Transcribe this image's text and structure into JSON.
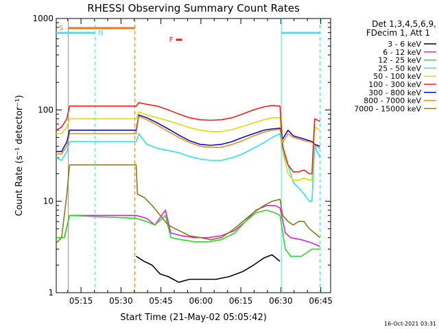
{
  "chart_data": {
    "type": "line",
    "title": "RHESSI Observing Summary Count Rates",
    "xlabel": "Start Time (21-May-02 05:05:42)",
    "ylabel": "Count Rate (s⁻¹ detector⁻¹)",
    "yscale": "log",
    "ylim": [
      1,
      1000
    ],
    "xlim_minutes": [
      0,
      103
    ],
    "x_tick_labels": [
      "05:15",
      "05:30",
      "05:45",
      "06:00",
      "06:15",
      "06:30",
      "06:45"
    ],
    "x_ticks_minutes": [
      9.3,
      24.3,
      39.3,
      54.3,
      69.3,
      84.3,
      99.3
    ],
    "y_tick_labels": [
      "1",
      "10",
      "100",
      "1000"
    ],
    "y_ticks": [
      1,
      10,
      100,
      1000
    ],
    "legend_title": [
      "Det 1,3,4,5,6,9,",
      "FDecim 1, Att 1"
    ],
    "legend_position": "top-right",
    "footer_date": "16-Oct-2021 03:31",
    "annotations": {
      "S": {
        "label": "S",
        "color": "#e87a1d",
        "from_minutes": 4.5,
        "to_minutes": 29.5
      },
      "N": {
        "label": "N",
        "color": "#4fdde8",
        "segments": [
          [
            0,
            14.5
          ],
          [
            84.5,
            99.0
          ]
        ]
      },
      "F": {
        "label": "F",
        "color": "#e81818",
        "x_minutes": 46.5
      }
    },
    "vlines": [
      {
        "x_minutes": 4.5,
        "color": "#e87a1d",
        "style": "solid"
      },
      {
        "x_minutes": 14.5,
        "color": "#4fdde8",
        "style": "dashed"
      },
      {
        "x_minutes": 29.5,
        "color": "#e87a1d",
        "style": "dashed"
      },
      {
        "x_minutes": 84.5,
        "color": "#4fdde8",
        "style": "solid"
      },
      {
        "x_minutes": 99.0,
        "color": "#4fdde8",
        "style": "dashed"
      }
    ],
    "series": [
      {
        "name": "3 - 6 keV",
        "color": "#000000",
        "points": [
          [
            30.0,
            2.5
          ],
          [
            33,
            2.2
          ],
          [
            36,
            2.0
          ],
          [
            39,
            1.6
          ],
          [
            42,
            1.5
          ],
          [
            46,
            1.3
          ],
          [
            50,
            1.4
          ],
          [
            55,
            1.4
          ],
          [
            60,
            1.4
          ],
          [
            65,
            1.5
          ],
          [
            70,
            1.7
          ],
          [
            74,
            2.0
          ],
          [
            78,
            2.4
          ],
          [
            81,
            2.6
          ],
          [
            84,
            2.2
          ]
        ]
      },
      {
        "name": "6 - 12 keV",
        "color": "#e01ee0",
        "points": [
          [
            0,
            4
          ],
          [
            3,
            4
          ],
          [
            5,
            7
          ],
          [
            30,
            7
          ],
          [
            34,
            6.5
          ],
          [
            37,
            5.5
          ],
          [
            41,
            8
          ],
          [
            43,
            4.5
          ],
          [
            47,
            4.2
          ],
          [
            52,
            4.0
          ],
          [
            57,
            4.0
          ],
          [
            62,
            4.2
          ],
          [
            67,
            4.8
          ],
          [
            71,
            6
          ],
          [
            75,
            8
          ],
          [
            79,
            9
          ],
          [
            82,
            9
          ],
          [
            84,
            8.5
          ],
          [
            86,
            4.5
          ],
          [
            88,
            4.0
          ],
          [
            92,
            3.8
          ],
          [
            96,
            3.5
          ],
          [
            99,
            3.2
          ]
        ]
      },
      {
        "name": "12 - 25 keV",
        "color": "#1fe01f",
        "points": [
          [
            0,
            4
          ],
          [
            3,
            4
          ],
          [
            5,
            7
          ],
          [
            30,
            6.5
          ],
          [
            34,
            6
          ],
          [
            37,
            5.5
          ],
          [
            41,
            7
          ],
          [
            43,
            4
          ],
          [
            47,
            3.8
          ],
          [
            52,
            3.6
          ],
          [
            57,
            3.6
          ],
          [
            62,
            3.8
          ],
          [
            67,
            4.5
          ],
          [
            71,
            6
          ],
          [
            75,
            7.5
          ],
          [
            79,
            8
          ],
          [
            82,
            7.5
          ],
          [
            84,
            7
          ],
          [
            86,
            3
          ],
          [
            88,
            2.5
          ],
          [
            92,
            2.5
          ],
          [
            96,
            3
          ],
          [
            99,
            3
          ]
        ]
      },
      {
        "name": "25 - 50 keV",
        "color": "#22e5ee",
        "points": [
          [
            0,
            30
          ],
          [
            2,
            28
          ],
          [
            4,
            35
          ],
          [
            5,
            45
          ],
          [
            30,
            45
          ],
          [
            31,
            55
          ],
          [
            34,
            42
          ],
          [
            38,
            38
          ],
          [
            42,
            36
          ],
          [
            46,
            34
          ],
          [
            50,
            31
          ],
          [
            54,
            29
          ],
          [
            58,
            28
          ],
          [
            62,
            28
          ],
          [
            66,
            30
          ],
          [
            70,
            33
          ],
          [
            74,
            38
          ],
          [
            78,
            44
          ],
          [
            81,
            50
          ],
          [
            84,
            55
          ],
          [
            85,
            35
          ],
          [
            87,
            25
          ],
          [
            89,
            16
          ],
          [
            91,
            14
          ],
          [
            93,
            12
          ],
          [
            95,
            10
          ],
          [
            96,
            10
          ],
          [
            97,
            40
          ],
          [
            99,
            30
          ]
        ]
      },
      {
        "name": "50 - 100 keV",
        "color": "#dcdc00",
        "points": [
          [
            0,
            55
          ],
          [
            2,
            55
          ],
          [
            4,
            65
          ],
          [
            5,
            80
          ],
          [
            30,
            80
          ],
          [
            31,
            95
          ],
          [
            34,
            88
          ],
          [
            38,
            82
          ],
          [
            42,
            76
          ],
          [
            46,
            70
          ],
          [
            50,
            64
          ],
          [
            54,
            60
          ],
          [
            58,
            58
          ],
          [
            62,
            58
          ],
          [
            66,
            61
          ],
          [
            70,
            66
          ],
          [
            74,
            72
          ],
          [
            78,
            78
          ],
          [
            81,
            82
          ],
          [
            84,
            82
          ],
          [
            85,
            35
          ],
          [
            87,
            20
          ],
          [
            89,
            17
          ],
          [
            91,
            17
          ],
          [
            93,
            18
          ],
          [
            95,
            17
          ],
          [
            96,
            17
          ],
          [
            97,
            65
          ],
          [
            99,
            60
          ]
        ]
      },
      {
        "name": "100 - 300 keV",
        "color": "#ff1a1a",
        "points": [
          [
            0,
            60
          ],
          [
            2,
            65
          ],
          [
            4,
            80
          ],
          [
            5,
            110
          ],
          [
            30,
            110
          ],
          [
            31,
            120
          ],
          [
            34,
            115
          ],
          [
            38,
            110
          ],
          [
            42,
            100
          ],
          [
            46,
            90
          ],
          [
            50,
            82
          ],
          [
            54,
            78
          ],
          [
            58,
            77
          ],
          [
            62,
            78
          ],
          [
            66,
            82
          ],
          [
            70,
            90
          ],
          [
            74,
            100
          ],
          [
            78,
            108
          ],
          [
            81,
            112
          ],
          [
            84,
            110
          ],
          [
            85,
            40
          ],
          [
            87,
            25
          ],
          [
            89,
            21
          ],
          [
            91,
            21
          ],
          [
            93,
            22
          ],
          [
            95,
            20
          ],
          [
            96,
            20
          ],
          [
            97,
            80
          ],
          [
            99,
            75
          ]
        ]
      },
      {
        "name": "300 - 800 keV",
        "color": "#0a0ad0",
        "points": [
          [
            0,
            35
          ],
          [
            2,
            35
          ],
          [
            4,
            45
          ],
          [
            5,
            60
          ],
          [
            30,
            60
          ],
          [
            31,
            88
          ],
          [
            34,
            82
          ],
          [
            38,
            72
          ],
          [
            42,
            62
          ],
          [
            46,
            53
          ],
          [
            50,
            46
          ],
          [
            54,
            42
          ],
          [
            58,
            41
          ],
          [
            62,
            42
          ],
          [
            66,
            45
          ],
          [
            70,
            50
          ],
          [
            74,
            55
          ],
          [
            78,
            60
          ],
          [
            81,
            62
          ],
          [
            84,
            63
          ],
          [
            85,
            48
          ],
          [
            87,
            60
          ],
          [
            89,
            52
          ],
          [
            91,
            50
          ],
          [
            93,
            48
          ],
          [
            95,
            46
          ],
          [
            96,
            45
          ],
          [
            97,
            42
          ],
          [
            99,
            40
          ]
        ]
      },
      {
        "name": "800 - 7000 keV",
        "color": "#f0891a",
        "points": [
          [
            0,
            33
          ],
          [
            2,
            33
          ],
          [
            4,
            40
          ],
          [
            5,
            55
          ],
          [
            30,
            55
          ],
          [
            31,
            85
          ],
          [
            34,
            78
          ],
          [
            38,
            68
          ],
          [
            42,
            58
          ],
          [
            46,
            50
          ],
          [
            50,
            44
          ],
          [
            54,
            40
          ],
          [
            58,
            39
          ],
          [
            62,
            39
          ],
          [
            66,
            42
          ],
          [
            70,
            46
          ],
          [
            74,
            52
          ],
          [
            78,
            57
          ],
          [
            81,
            60
          ],
          [
            84,
            61
          ],
          [
            85,
            44
          ],
          [
            87,
            55
          ],
          [
            89,
            50
          ],
          [
            91,
            48
          ],
          [
            93,
            46
          ],
          [
            95,
            45
          ],
          [
            96,
            44
          ],
          [
            97,
            41
          ],
          [
            99,
            38
          ]
        ]
      },
      {
        "name": "7000 - 15000 keV",
        "color": "#8a7a10",
        "points": [
          [
            0,
            3.5
          ],
          [
            2,
            4
          ],
          [
            4,
            12
          ],
          [
            5,
            25
          ],
          [
            30,
            25
          ],
          [
            30.5,
            12
          ],
          [
            33,
            11
          ],
          [
            36,
            9
          ],
          [
            39,
            7
          ],
          [
            42,
            5.5
          ],
          [
            46,
            4.8
          ],
          [
            50,
            4.2
          ],
          [
            54,
            4.0
          ],
          [
            58,
            3.8
          ],
          [
            62,
            4.0
          ],
          [
            66,
            4.8
          ],
          [
            70,
            6
          ],
          [
            74,
            7.5
          ],
          [
            78,
            9
          ],
          [
            81,
            10
          ],
          [
            84,
            10.5
          ],
          [
            85,
            7
          ],
          [
            87,
            6
          ],
          [
            89,
            5.5
          ],
          [
            91,
            6
          ],
          [
            93,
            6
          ],
          [
            95,
            5
          ],
          [
            97,
            4.5
          ],
          [
            99,
            4.0
          ]
        ]
      }
    ]
  }
}
